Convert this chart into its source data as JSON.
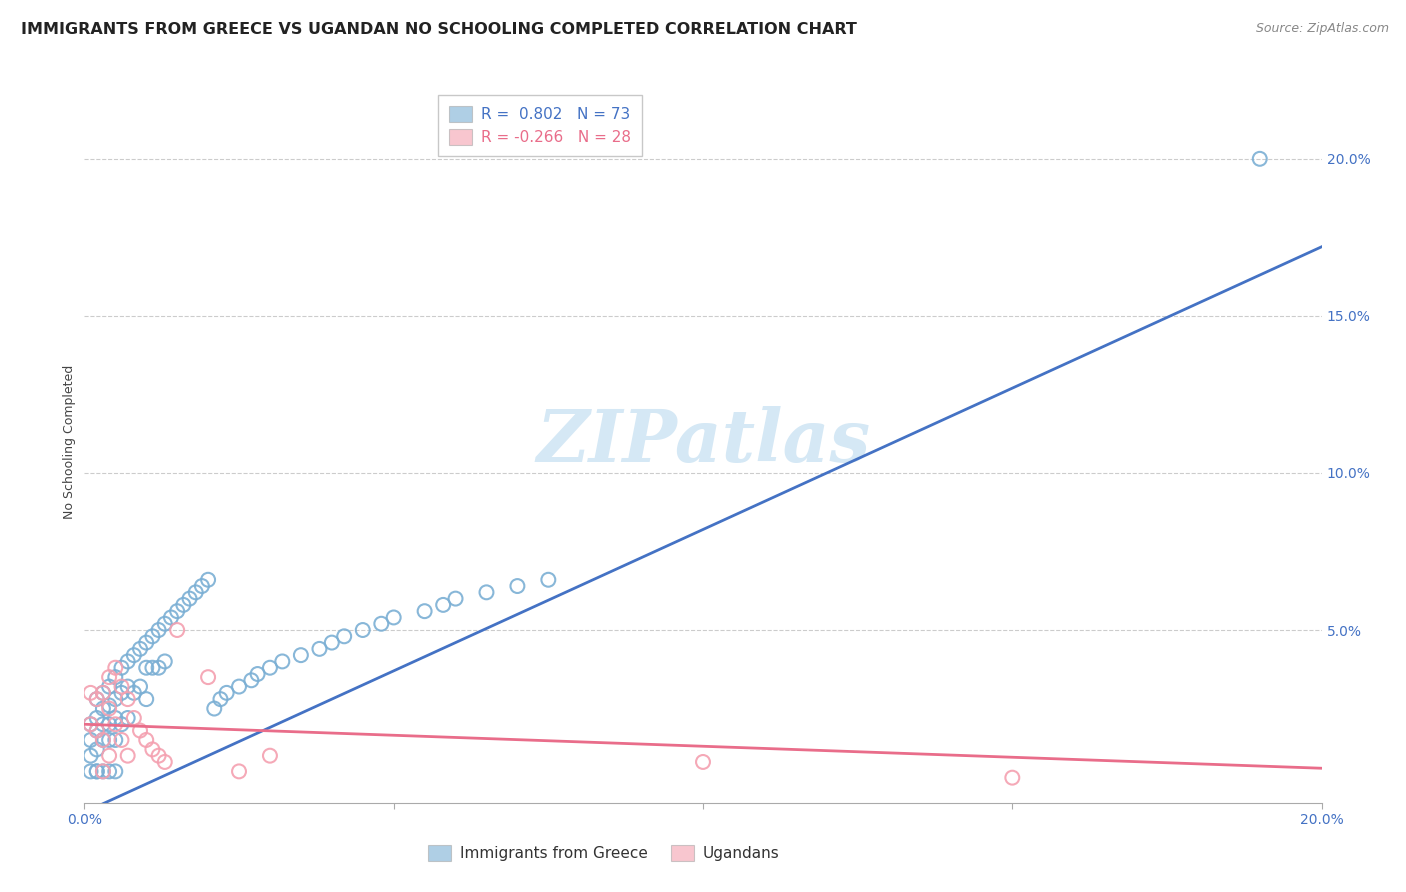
{
  "title": "IMMIGRANTS FROM GREECE VS UGANDAN NO SCHOOLING COMPLETED CORRELATION CHART",
  "source": "Source: ZipAtlas.com",
  "ylabel": "No Schooling Completed",
  "xlim": [
    0.0,
    0.2
  ],
  "ylim": [
    -0.005,
    0.225
  ],
  "x_ticks": [
    0.0,
    0.05,
    0.1,
    0.15,
    0.2
  ],
  "x_tick_labels": [
    "0.0%",
    "",
    "",
    "",
    "20.0%"
  ],
  "y_ticks_right": [
    0.0,
    0.05,
    0.1,
    0.15,
    0.2
  ],
  "y_tick_labels_right": [
    "",
    "5.0%",
    "10.0%",
    "15.0%",
    "20.0%"
  ],
  "legend_blue_r": "0.802",
  "legend_blue_n": "73",
  "legend_pink_r": "-0.266",
  "legend_pink_n": "28",
  "blue_color": "#7BAFD4",
  "pink_color": "#F4A0B0",
  "blue_line_color": "#4472C4",
  "pink_line_color": "#E96D8A",
  "watermark_text": "ZIPatlas",
  "watermark_color": "#D5E8F5",
  "blue_line": [
    0.0,
    0.2,
    -0.008,
    0.172
  ],
  "pink_line": [
    0.0,
    0.2,
    0.02,
    0.006
  ],
  "blue_scatter_x": [
    0.001,
    0.001,
    0.001,
    0.001,
    0.002,
    0.002,
    0.002,
    0.002,
    0.002,
    0.003,
    0.003,
    0.003,
    0.003,
    0.003,
    0.004,
    0.004,
    0.004,
    0.004,
    0.004,
    0.005,
    0.005,
    0.005,
    0.005,
    0.005,
    0.006,
    0.006,
    0.006,
    0.007,
    0.007,
    0.007,
    0.008,
    0.008,
    0.009,
    0.009,
    0.01,
    0.01,
    0.01,
    0.011,
    0.011,
    0.012,
    0.012,
    0.013,
    0.013,
    0.014,
    0.015,
    0.016,
    0.017,
    0.018,
    0.019,
    0.02,
    0.021,
    0.022,
    0.023,
    0.025,
    0.027,
    0.028,
    0.03,
    0.032,
    0.035,
    0.038,
    0.04,
    0.042,
    0.045,
    0.048,
    0.05,
    0.055,
    0.058,
    0.06,
    0.065,
    0.07,
    0.075,
    0.002,
    0.19
  ],
  "blue_scatter_y": [
    0.02,
    0.015,
    0.01,
    0.005,
    0.028,
    0.022,
    0.018,
    0.012,
    0.005,
    0.03,
    0.025,
    0.02,
    0.015,
    0.005,
    0.032,
    0.026,
    0.02,
    0.015,
    0.005,
    0.035,
    0.028,
    0.022,
    0.015,
    0.005,
    0.038,
    0.03,
    0.02,
    0.04,
    0.032,
    0.022,
    0.042,
    0.03,
    0.044,
    0.032,
    0.046,
    0.038,
    0.028,
    0.048,
    0.038,
    0.05,
    0.038,
    0.052,
    0.04,
    0.054,
    0.056,
    0.058,
    0.06,
    0.062,
    0.064,
    0.066,
    0.025,
    0.028,
    0.03,
    0.032,
    0.034,
    0.036,
    0.038,
    0.04,
    0.042,
    0.044,
    0.046,
    0.048,
    0.05,
    0.052,
    0.054,
    0.056,
    0.058,
    0.06,
    0.062,
    0.064,
    0.066,
    0.005,
    0.2
  ],
  "pink_scatter_x": [
    0.001,
    0.001,
    0.002,
    0.002,
    0.003,
    0.003,
    0.004,
    0.004,
    0.004,
    0.005,
    0.005,
    0.006,
    0.006,
    0.007,
    0.007,
    0.008,
    0.009,
    0.01,
    0.011,
    0.012,
    0.013,
    0.015,
    0.02,
    0.025,
    0.03,
    0.1,
    0.15,
    0.003
  ],
  "pink_scatter_y": [
    0.03,
    0.02,
    0.028,
    0.018,
    0.03,
    0.015,
    0.035,
    0.025,
    0.01,
    0.038,
    0.02,
    0.032,
    0.015,
    0.028,
    0.01,
    0.022,
    0.018,
    0.015,
    0.012,
    0.01,
    0.008,
    0.05,
    0.035,
    0.005,
    0.01,
    0.008,
    0.003,
    0.005
  ],
  "title_fontsize": 11.5,
  "source_fontsize": 9,
  "axis_tick_fontsize": 10,
  "ylabel_fontsize": 9,
  "watermark_fontsize": 52,
  "background_color": "#FFFFFF",
  "grid_color": "#CCCCCC",
  "tick_color": "#4472C4",
  "axis_color": "#AAAAAA"
}
